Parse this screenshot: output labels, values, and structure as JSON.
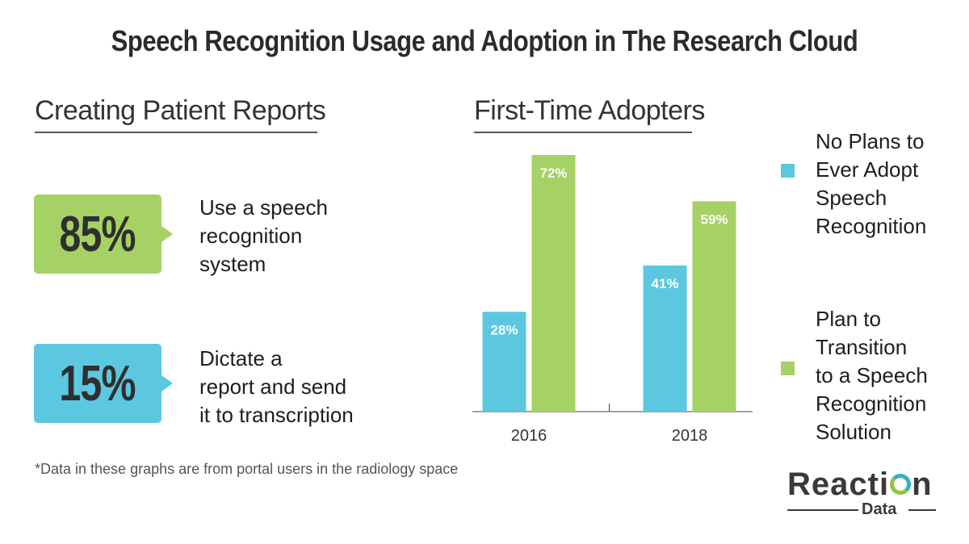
{
  "title": "Speech Recognition Usage and Adoption in The Research Cloud",
  "left_section": {
    "heading": "Creating Patient Reports",
    "stats": [
      {
        "value": "85%",
        "lines": [
          "Use a speech",
          "recognition",
          "system"
        ],
        "color": "#a6d164"
      },
      {
        "value": "15%",
        "lines": [
          "Dictate a",
          "report and send",
          "it to transcription"
        ],
        "color": "#5bc8e0"
      }
    ]
  },
  "right_section": {
    "heading": "First-Time Adopters"
  },
  "footnote": "*Data in these graphs are from portal users in the radiology space",
  "chart_data": {
    "type": "bar",
    "title": "First-Time Adopters",
    "categories": [
      "2016",
      "2018"
    ],
    "series": [
      {
        "name": "No Plans to Ever Adopt Speech Recognition",
        "values": [
          28,
          41
        ],
        "labels": [
          "28%",
          "41%"
        ],
        "color": "#5bc8e0"
      },
      {
        "name": "Plan to Transition to a Speech Recognition Solution",
        "values": [
          72,
          59
        ],
        "labels": [
          "72%",
          "59%"
        ],
        "color": "#a6d164"
      }
    ],
    "ylim": [
      0,
      72
    ],
    "grid": false,
    "legend_position": "right"
  },
  "legend": [
    {
      "lines": [
        "No Plans to",
        "Ever Adopt",
        "Speech",
        "Recognition"
      ],
      "color": "#5bc8e0"
    },
    {
      "lines": [
        "Plan to",
        "Transition",
        "to a Speech",
        "Recognition",
        "Solution"
      ],
      "color": "#a6d164"
    }
  ],
  "logo": {
    "word_start": "Reacti",
    "word_end": "n",
    "sub": "Data"
  }
}
